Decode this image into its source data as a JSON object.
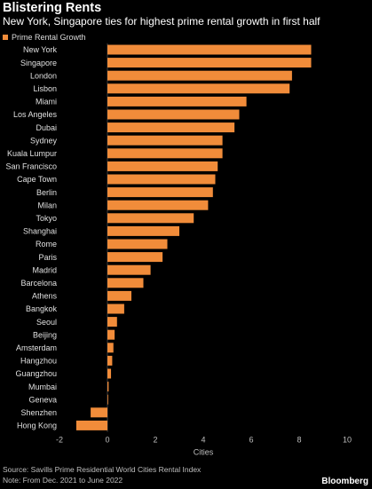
{
  "header": {
    "title": "Blistering Rents",
    "subtitle": "New York, Singapore ties for highest prime rental growth in first half"
  },
  "footer": {
    "source": "Source: Savills Prime Residential World Cities Rental Index",
    "note": "Note: From Dec. 2021 to June 2022",
    "brand": "Bloomberg"
  },
  "chart_data": {
    "type": "bar",
    "orientation": "horizontal",
    "xlabel": "Cities",
    "ylabel": "",
    "xlim": [
      -2,
      10
    ],
    "xticks": [
      -2,
      0,
      2,
      4,
      6,
      8,
      10
    ],
    "grid": false,
    "legend_position": "top-left",
    "series": [
      {
        "name": "Prime Rental Growth",
        "color": "#f18c3a",
        "values": [
          8.5,
          8.5,
          7.7,
          7.6,
          5.8,
          5.5,
          5.3,
          4.8,
          4.8,
          4.6,
          4.5,
          4.4,
          4.2,
          3.6,
          3.0,
          2.5,
          2.3,
          1.8,
          1.5,
          1.0,
          0.7,
          0.4,
          0.3,
          0.25,
          0.2,
          0.15,
          0.05,
          0.03,
          -0.7,
          -1.3
        ]
      }
    ],
    "categories": [
      "New York",
      "Singapore",
      "London",
      "Lisbon",
      "Miami",
      "Los Angeles",
      "Dubai",
      "Sydney",
      "Kuala Lumpur",
      "San Francisco",
      "Cape Town",
      "Berlin",
      "Milan",
      "Tokyo",
      "Shanghai",
      "Rome",
      "Paris",
      "Madrid",
      "Barcelona",
      "Athens",
      "Bangkok",
      "Seoul",
      "Beijing",
      "Amsterdam",
      "Hangzhou",
      "Guangzhou",
      "Mumbai",
      "Geneva",
      "Shenzhen",
      "Hong Kong"
    ]
  }
}
